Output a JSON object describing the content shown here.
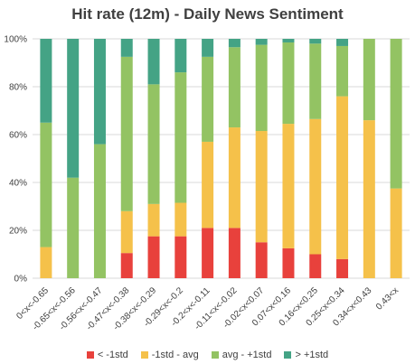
{
  "chart_data": {
    "type": "bar",
    "stacked": true,
    "title": "Hit rate (12m) - Daily News Sentiment",
    "xlabel": "",
    "ylabel": "",
    "ylim": [
      0,
      100
    ],
    "y_ticks": [
      "0%",
      "20%",
      "40%",
      "60%",
      "80%",
      "100%"
    ],
    "grid": true,
    "legend_position": "bottom",
    "categories": [
      "0<x<-0.65",
      "-0.65<x<-0.56",
      "-0.56<x<-0.47",
      "-0.47<x<-0.38",
      "-0.38<x<-0.29",
      "-0.29<x<-0.2",
      "-0.2<x<-0.11",
      "-0.11<x<-0.02",
      "-0.02<x<0.07",
      "0.07<x<0.16",
      "0.16<x<0.25",
      "0.25<x<0.34",
      "0.34<x<0.43",
      "0.43<x"
    ],
    "series": [
      {
        "name": "< -1std",
        "color": "#e8413c",
        "values": [
          0,
          0,
          0,
          10.5,
          17.5,
          17.5,
          21,
          21,
          15,
          12.5,
          10,
          8,
          0,
          0
        ]
      },
      {
        "name": "-1std - avg",
        "color": "#f5c14a",
        "values": [
          13,
          0,
          0,
          17.5,
          13.5,
          14,
          36,
          42,
          46.5,
          52,
          56.5,
          68,
          66,
          37.5
        ]
      },
      {
        "name": "avg - +1std",
        "color": "#93c363",
        "values": [
          52,
          42,
          56,
          64.5,
          50,
          54.5,
          35.5,
          33.5,
          36,
          34,
          31.5,
          21,
          34,
          62.5
        ]
      },
      {
        "name": "> +1std",
        "color": "#44a385",
        "values": [
          35,
          58,
          44,
          7.5,
          19,
          14,
          7.5,
          3.5,
          2.5,
          1.5,
          2,
          3,
          0,
          0
        ]
      }
    ]
  }
}
